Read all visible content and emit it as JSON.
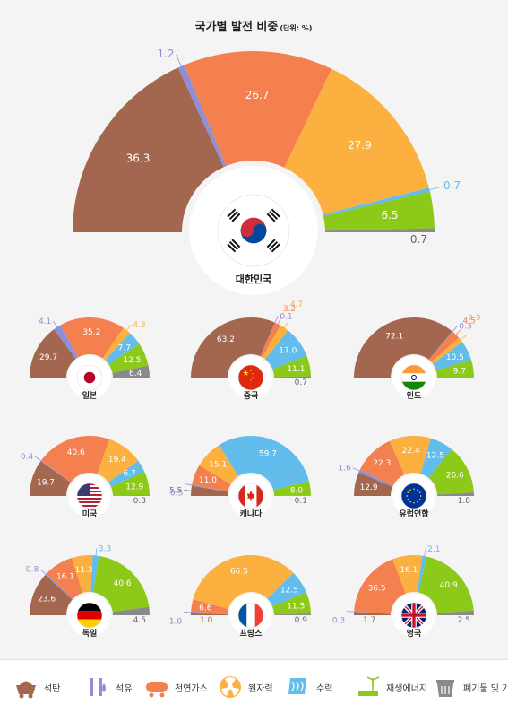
{
  "title": "국가별 발전 비중",
  "title_unit": "(단위: %)",
  "colors": {
    "coal": "#a3674f",
    "oil": "#8e8fd6",
    "gas": "#f47f4f",
    "nuclear": "#fbb040",
    "hydro": "#62bdec",
    "renewable": "#8dc918",
    "waste": "#8a8a8a"
  },
  "legend": [
    {
      "key": "coal",
      "label": "석탄",
      "icon": "coal-cart-icon"
    },
    {
      "key": "oil",
      "label": "석유",
      "icon": "oil-drop-icon"
    },
    {
      "key": "gas",
      "label": "천연가스",
      "icon": "gas-tank-icon"
    },
    {
      "key": "nuclear",
      "label": "원자력",
      "icon": "radiation-icon"
    },
    {
      "key": "hydro",
      "label": "수력",
      "icon": "water-icon"
    },
    {
      "key": "renewable",
      "label": "재생에너지",
      "icon": "wind-turbine-icon"
    },
    {
      "key": "waste",
      "label": "폐기물 및 기타",
      "icon": "waste-bin-icon"
    }
  ],
  "chart_data": {
    "type": "pie",
    "categories": [
      "석탄",
      "석유",
      "천연가스",
      "원자력",
      "수력",
      "재생에너지",
      "폐기물 및 기타"
    ],
    "countries": [
      {
        "name": "대한민국",
        "flag": "korea",
        "values": [
          36.3,
          1.2,
          26.7,
          27.9,
          0.7,
          6.5,
          0.7
        ]
      },
      {
        "name": "일본",
        "flag": "japan",
        "values": [
          29.7,
          4.1,
          35.2,
          4.3,
          7.7,
          12.5,
          6.4
        ]
      },
      {
        "name": "중국",
        "flag": "china",
        "values": [
          63.2,
          0.1,
          3.2,
          4.7,
          17.0,
          11.1,
          0.7
        ]
      },
      {
        "name": "인도",
        "flag": "india",
        "values": [
          72.1,
          0.3,
          4.5,
          2.9,
          10.5,
          9.7,
          0
        ]
      },
      {
        "name": "미국",
        "flag": "usa",
        "values": [
          19.7,
          0.4,
          40.6,
          19.4,
          6.7,
          12.9,
          0.3
        ]
      },
      {
        "name": "캐나다",
        "flag": "canada",
        "values": [
          5.5,
          0.5,
          11.0,
          15.1,
          59.7,
          8.0,
          0.1
        ]
      },
      {
        "name": "유럽연합",
        "flag": "eu",
        "values": [
          12.9,
          1.6,
          22.3,
          22.4,
          12.5,
          26.6,
          1.8
        ]
      },
      {
        "name": "독일",
        "flag": "germany",
        "values": [
          23.6,
          0.8,
          16.1,
          11.3,
          3.3,
          40.6,
          4.5
        ]
      },
      {
        "name": "프랑스",
        "flag": "france",
        "values": [
          1.0,
          1.0,
          6.6,
          66.5,
          12.5,
          11.5,
          0.9
        ]
      },
      {
        "name": "영국",
        "flag": "uk",
        "values": [
          1.7,
          0.3,
          36.5,
          16.1,
          2.1,
          40.9,
          2.5
        ]
      }
    ]
  }
}
